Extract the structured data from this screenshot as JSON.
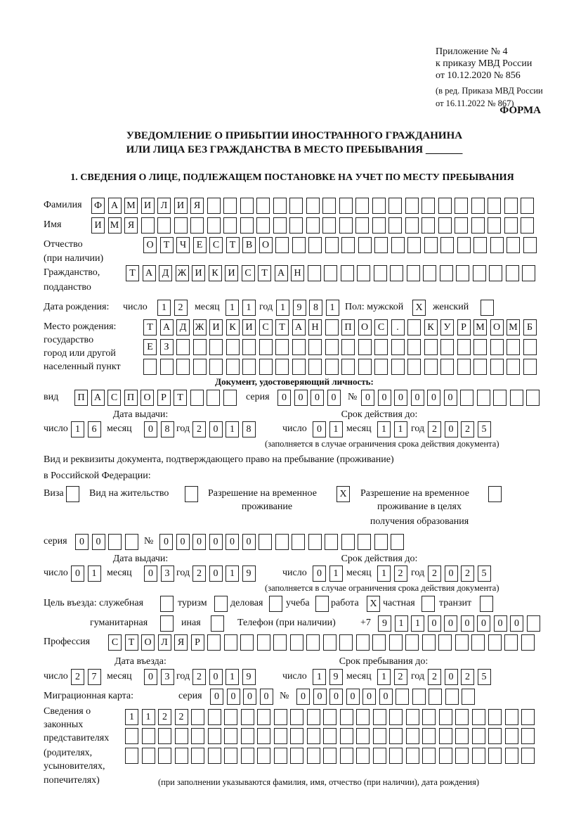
{
  "header": {
    "appendix": "Приложение № 4",
    "order": "к приказу МВД России",
    "date": "от 10.12.2020 № 856",
    "edition1": "(в ред. Приказа МВД России",
    "edition2": "от 16.11.2022 № 867)"
  },
  "forma": "ФОРМА",
  "title1": "УВЕДОМЛЕНИЕ О ПРИБЫТИИ ИНОСТРАННОГО ГРАЖДАНИНА",
  "title2": "ИЛИ ЛИЦА БЕЗ ГРАЖДАНСТВА В МЕСТО ПРЕБЫВАНИЯ _______",
  "section1": "1. СВЕДЕНИЯ О ЛИЦЕ, ПОДЛЕЖАЩЕМ ПОСТАНОВКЕ НА УЧЕТ ПО МЕСТУ ПРЕБЫВАНИЯ",
  "surname": {
    "label": "Фамилия",
    "value": "ФАМИЛИЯ"
  },
  "name": {
    "label": "Имя",
    "value": "ИМЯ"
  },
  "patronymic": {
    "label": "Отчество",
    "label2": "(при наличии)",
    "value": "ОТЧЕСТВО"
  },
  "citizenship": {
    "label": "Гражданство,",
    "label2": "подданство",
    "value": "ТАДЖИКИСТАН"
  },
  "birth": {
    "label": "Дата рождения:",
    "day_label": "число",
    "day": "12",
    "month_label": "месяц",
    "month": "11",
    "year_label": "год",
    "year": "1981",
    "sex_label": "Пол: мужской",
    "male": "X",
    "female_label": "женский",
    "female": ""
  },
  "birthplace": {
    "label1": "Место рождения:",
    "label2": "государство",
    "label3": "город или другой",
    "label4": "населенный пункт",
    "line1": "ТАДЖИКИСТАН ПОС. КУРМОМБ",
    "line2": "ЕЗ",
    "line3": ""
  },
  "id_doc": {
    "heading": "Документ, удостоверяющий личность:",
    "kind_label": "вид",
    "kind": "ПАСПОРТ",
    "series_label": "серия",
    "series": "0000",
    "number_label": "№",
    "number": "000000",
    "issue_label": "Дата выдачи:",
    "valid_label": "Срок действия до:",
    "day_label": "число",
    "month_label": "месяц",
    "year_label": "год",
    "issue_day": "16",
    "issue_month": "08",
    "issue_year": "2018",
    "valid_day": "01",
    "valid_month": "11",
    "valid_year": "2025",
    "note": "(заполняется в случае ограничения срока действия документа)"
  },
  "stay_doc": {
    "heading1": "Вид и реквизиты документа, подтверждающего право на пребывание (проживание)",
    "heading2": "в Российской Федерации:",
    "visa_label": "Виза",
    "visa": "",
    "residence_label": "Вид на жительство",
    "residence": "",
    "temp_label1": "Разрешение на временное",
    "temp_label2": "проживание",
    "temp": "X",
    "edu_label1": "Разрешение на временное",
    "edu_label2": "проживание в целях",
    "edu_label3": "получения образования",
    "edu": "",
    "series_label": "серия",
    "series": "00",
    "number_label": "№",
    "number": "000000",
    "issue_label": "Дата выдачи:",
    "valid_label": "Срок действия до:",
    "day_label": "число",
    "month_label": "месяц",
    "year_label": "год",
    "issue_day": "01",
    "issue_month": "03",
    "issue_year": "2019",
    "valid_day": "01",
    "valid_month": "12",
    "valid_year": "2025",
    "note": "(заполняется в случае ограничения срока действия документа)"
  },
  "purpose": {
    "label": "Цель въезда: служебная",
    "official": "",
    "tourism_label": "туризм",
    "tourism": "",
    "business_label": "деловая",
    "business": "",
    "study_label": "учеба",
    "study": "",
    "work_label": "работа",
    "work": "X",
    "private_label": "частная",
    "private": "",
    "transit_label": "транзит",
    "transit": "",
    "humanitarian_label": "гуманитарная",
    "humanitarian": "",
    "other_label": "иная",
    "other": ""
  },
  "phone": {
    "label": "Телефон (при наличии)",
    "prefix": "+7",
    "value": "911000000"
  },
  "profession": {
    "label": "Профессия",
    "value": "СТОЛЯР"
  },
  "entry": {
    "entry_label": "Дата въезда:",
    "stay_label": "Срок пребывания до:",
    "day_label": "число",
    "month_label": "месяц",
    "year_label": "год",
    "entry_day": "27",
    "entry_month": "03",
    "entry_year": "2019",
    "stay_day": "19",
    "stay_month": "12",
    "stay_year": "2025"
  },
  "migration_card": {
    "label": "Миграционная карта:",
    "series_label": "серия",
    "series": "0000",
    "number_label": "№",
    "number": "000000"
  },
  "representatives": {
    "label1": "Сведения о",
    "label2": "законных",
    "label3": "представителях",
    "label4": "(родителях,",
    "label5": "усыновителях,",
    "label6": "попечителях)",
    "line1": "1122",
    "line2": "",
    "line3": "",
    "note": "(при заполнении указываются фамилия, имя, отчество (при наличии), дата рождения)"
  }
}
